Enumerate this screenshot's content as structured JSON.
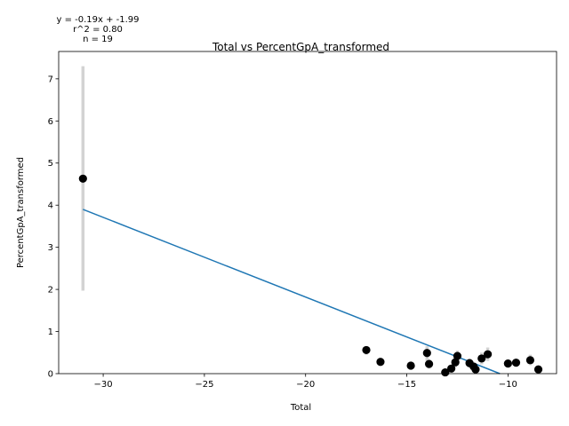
{
  "chart_data": {
    "type": "scatter",
    "title": "Total vs PercentGpA_transformed",
    "xlabel": "Total",
    "ylabel": "PercentGpA_transformed",
    "xlim": [
      -32.2,
      -7.6
    ],
    "ylim": [
      0,
      7.65
    ],
    "xticks": [
      -30,
      -25,
      -20,
      -15,
      -10
    ],
    "yticks": [
      0,
      1,
      2,
      3,
      4,
      5,
      6,
      7
    ],
    "grid": false,
    "annotations": [
      "y = -0.19x + -1.99",
      "r^2 = 0.80",
      "n = 19"
    ],
    "colors": {
      "points": "#000000",
      "fit_line": "#1f77b4",
      "error_bars": "#d3d3d3"
    },
    "fit": {
      "slope": -0.19,
      "intercept": -1.99,
      "x_range": [
        -31,
        -10.4
      ]
    },
    "points": [
      {
        "x": -31.0,
        "y": 4.63,
        "err_low": 1.97,
        "err_high": 7.3
      },
      {
        "x": -17.0,
        "y": 0.56,
        "err_low": 0.45,
        "err_high": 0.65
      },
      {
        "x": -16.3,
        "y": 0.28,
        "err_low": 0.2,
        "err_high": 0.35
      },
      {
        "x": -14.8,
        "y": 0.19,
        "err_low": 0.12,
        "err_high": 0.26
      },
      {
        "x": -14.0,
        "y": 0.49,
        "err_low": 0.3,
        "err_high": 0.65
      },
      {
        "x": -13.9,
        "y": 0.23,
        "err_low": 0.12,
        "err_high": 0.34
      },
      {
        "x": -13.1,
        "y": 0.03,
        "err_low": 0.0,
        "err_high": 0.1
      },
      {
        "x": -12.8,
        "y": 0.12,
        "err_low": 0.05,
        "err_high": 0.2
      },
      {
        "x": -12.6,
        "y": 0.27,
        "err_low": 0.15,
        "err_high": 0.38
      },
      {
        "x": -12.5,
        "y": 0.42,
        "err_low": 0.28,
        "err_high": 0.55
      },
      {
        "x": -11.9,
        "y": 0.25,
        "err_low": 0.15,
        "err_high": 0.35
      },
      {
        "x": -11.7,
        "y": 0.17,
        "err_low": 0.08,
        "err_high": 0.26
      },
      {
        "x": -11.6,
        "y": 0.1,
        "err_low": 0.04,
        "err_high": 0.17
      },
      {
        "x": -11.3,
        "y": 0.36,
        "err_low": 0.22,
        "err_high": 0.5
      },
      {
        "x": -11.0,
        "y": 0.46,
        "err_low": 0.3,
        "err_high": 0.62
      },
      {
        "x": -10.0,
        "y": 0.24,
        "err_low": 0.15,
        "err_high": 0.34
      },
      {
        "x": -9.6,
        "y": 0.26,
        "err_low": 0.17,
        "err_high": 0.36
      },
      {
        "x": -8.9,
        "y": 0.32,
        "err_low": 0.2,
        "err_high": 0.45
      },
      {
        "x": -8.5,
        "y": 0.1,
        "err_low": 0.03,
        "err_high": 0.18
      }
    ]
  }
}
